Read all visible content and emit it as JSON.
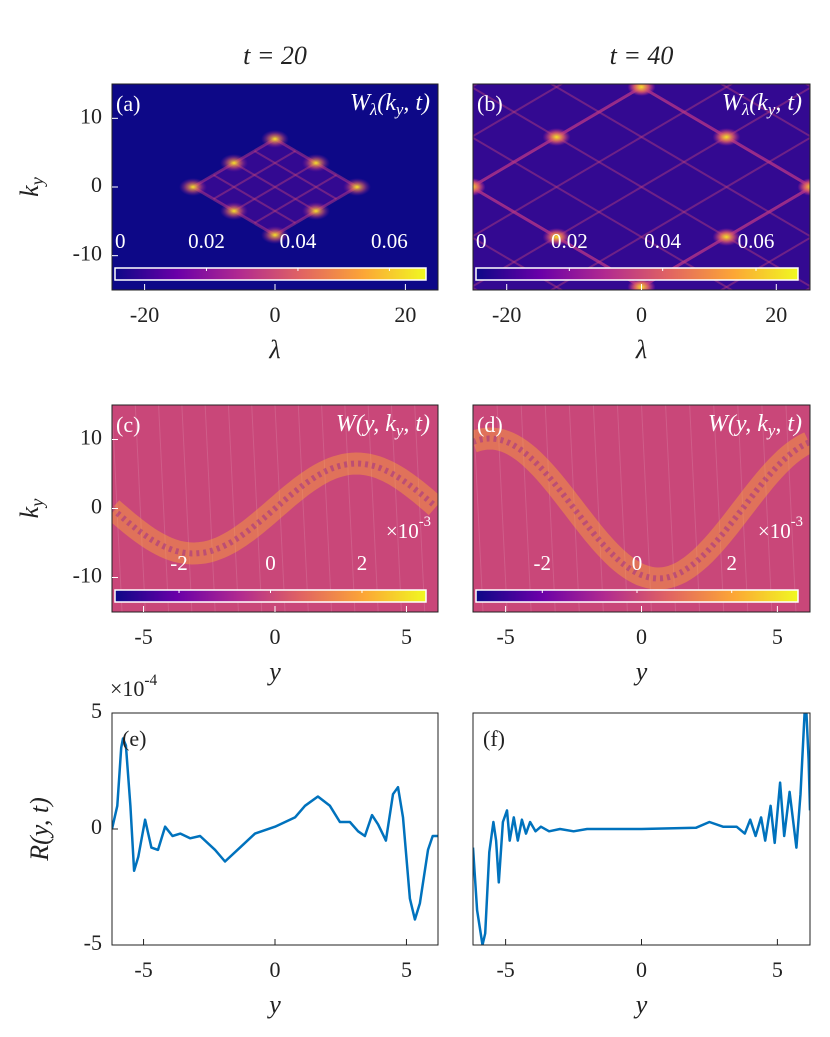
{
  "chart_data": [
    {
      "type": "heatmap",
      "title": "t = 20",
      "panel_label": "(a)",
      "annotation": "W_λ(k_y, t)",
      "xlabel": "λ",
      "ylabel": "k_y",
      "xlim": [
        -25,
        25
      ],
      "xticks": [
        -20,
        0,
        20
      ],
      "ylim": [
        -15,
        15
      ],
      "yticks": [
        -10,
        0,
        10
      ],
      "colormap": "plasma",
      "colorbar": {
        "lim": [
          0,
          0.068
        ],
        "ticks": [
          0,
          0.02,
          0.04,
          0.06
        ]
      }
    },
    {
      "type": "heatmap",
      "title": "t = 40",
      "panel_label": "(b)",
      "annotation": "W_λ(k_y, t)",
      "xlabel": "λ",
      "xlim": [
        -25,
        25
      ],
      "xticks": [
        -20,
        0,
        20
      ],
      "colormap": "plasma",
      "colorbar": {
        "lim": [
          0,
          0.069
        ],
        "ticks": [
          0,
          0.02,
          0.04,
          0.06
        ]
      }
    },
    {
      "type": "heatmap",
      "panel_label": "(c)",
      "annotation": "W(y, k_y, t)",
      "xlabel": "y",
      "ylabel": "k_y",
      "xlim": [
        -6.2,
        6.2
      ],
      "xticks": [
        -5,
        0,
        5
      ],
      "ylim": [
        -15,
        15
      ],
      "yticks": [
        -10,
        0,
        10
      ],
      "colormap": "plasma",
      "colorbar": {
        "lim": [
          -3.4,
          3.4
        ],
        "ticks": [
          -2,
          0,
          2
        ],
        "exponent": "×10^{-3}"
      }
    },
    {
      "type": "heatmap",
      "panel_label": "(d)",
      "annotation": "W(y, k_y, t)",
      "xlabel": "y",
      "xlim": [
        -6.2,
        6.2
      ],
      "xticks": [
        -5,
        0,
        5
      ],
      "colormap": "plasma",
      "colorbar": {
        "lim": [
          -3.4,
          3.4
        ],
        "ticks": [
          -2,
          0,
          2
        ],
        "exponent": "×10^{-3}"
      }
    },
    {
      "type": "line",
      "panel_label": "(e)",
      "xlabel": "y",
      "ylabel": "R(y, t)",
      "y_exponent": "×10^{-4}",
      "xlim": [
        -6.2,
        6.2
      ],
      "xticks": [
        -5,
        0,
        5
      ],
      "ylim": [
        -5,
        5
      ],
      "yticks": [
        -5,
        0,
        5
      ],
      "color": "#0072bd",
      "x": [
        -6.2,
        -6.0,
        -5.85,
        -5.78,
        -5.67,
        -5.5,
        -5.36,
        -5.2,
        -4.94,
        -4.7,
        -4.45,
        -4.18,
        -3.9,
        -3.6,
        -3.23,
        -2.85,
        -2.28,
        -1.9,
        -1.33,
        -0.76,
        0,
        0.76,
        1.14,
        1.63,
        2.09,
        2.47,
        2.85,
        3.16,
        3.42,
        3.69,
        3.92,
        4.22,
        4.49,
        4.68,
        4.87,
        5.13,
        5.32,
        5.51,
        5.82,
        6.0,
        6.2
      ],
      "values": [
        0,
        1.0,
        3.5,
        3.9,
        3.6,
        1.0,
        -1.8,
        -1.2,
        0.4,
        -0.8,
        -0.9,
        0.1,
        -0.3,
        -0.2,
        -0.4,
        -0.3,
        -0.9,
        -1.4,
        -0.8,
        -0.2,
        0.1,
        0.5,
        1.0,
        1.4,
        1.0,
        0.3,
        0.3,
        -0.1,
        -0.3,
        0.6,
        0.2,
        -0.5,
        1.5,
        1.8,
        0.5,
        -3.0,
        -3.9,
        -3.2,
        -0.9,
        -0.3,
        -0.3
      ]
    },
    {
      "type": "line",
      "panel_label": "(f)",
      "xlabel": "y",
      "xlim": [
        -6.2,
        6.2
      ],
      "xticks": [
        -5,
        0,
        5
      ],
      "ylim": [
        -5,
        5
      ],
      "color": "#0072bd",
      "x": [
        -6.2,
        -6.05,
        -5.85,
        -5.75,
        -5.6,
        -5.45,
        -5.35,
        -5.25,
        -5.1,
        -4.95,
        -4.85,
        -4.7,
        -4.55,
        -4.4,
        -4.25,
        -4.1,
        -3.9,
        -3.7,
        -3.4,
        -3.0,
        -2.5,
        -2.0,
        0,
        2.0,
        2.5,
        3.0,
        3.5,
        3.8,
        4.0,
        4.2,
        4.4,
        4.55,
        4.75,
        4.9,
        5.1,
        5.25,
        5.45,
        5.7,
        5.85,
        6.0,
        6.05,
        6.15,
        6.2
      ],
      "values": [
        -0.8,
        -3.5,
        -5.0,
        -4.5,
        -1.0,
        0.3,
        -0.5,
        -2.3,
        0.3,
        0.8,
        -0.5,
        0.5,
        -0.5,
        0.4,
        -0.2,
        0.3,
        -0.1,
        0.1,
        -0.1,
        0,
        -0.1,
        0,
        0,
        0.05,
        0.3,
        0.1,
        0.1,
        -0.2,
        0.4,
        -0.3,
        0.5,
        -0.5,
        1.0,
        -0.6,
        2.0,
        -0.3,
        1.6,
        -0.8,
        1.5,
        5.0,
        5.5,
        3.0,
        0.8
      ]
    }
  ]
}
